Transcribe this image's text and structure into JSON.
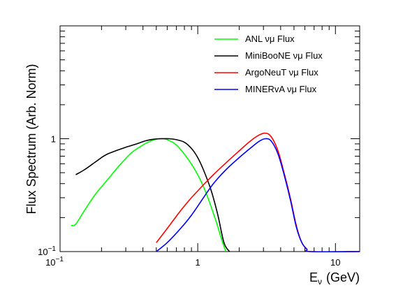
{
  "chart_data": {
    "type": "line",
    "xscale": "log",
    "yscale": "log",
    "xlim": [
      0.1,
      15
    ],
    "ylim": [
      0.1,
      10
    ],
    "xlabel": "E",
    "xlabel_sub": "ν",
    "xlabel_unit": "(GeV)",
    "ylabel": "Flux Spectrum (Arb. Norm)",
    "x_ticks": [
      {
        "value": 0.1,
        "base": "10",
        "exp": "−1"
      },
      {
        "value": 1,
        "text": "1"
      },
      {
        "value": 10,
        "text": "10"
      }
    ],
    "y_ticks": [
      {
        "value": 0.1,
        "base": "10",
        "exp": "−1"
      },
      {
        "value": 1,
        "text": "1"
      }
    ],
    "grid": false,
    "legend_position": "top-right",
    "series": [
      {
        "name": "ANL νμ Flux",
        "legend_prefix": "ANL ",
        "color": "#00ff00",
        "x": [
          0.12,
          0.13,
          0.15,
          0.18,
          0.22,
          0.27,
          0.33,
          0.4,
          0.46,
          0.52,
          0.56,
          0.6,
          0.7,
          0.85,
          1.0,
          1.15,
          1.35,
          1.5,
          1.6
        ],
        "y": [
          0.17,
          0.175,
          0.23,
          0.32,
          0.43,
          0.58,
          0.75,
          0.88,
          0.96,
          1.0,
          1.0,
          0.98,
          0.88,
          0.66,
          0.48,
          0.33,
          0.19,
          0.125,
          0.1
        ]
      },
      {
        "name": "MiniBooNE νμ Flux",
        "legend_prefix": "MiniBooNE ",
        "color": "#000000",
        "x": [
          0.13,
          0.15,
          0.18,
          0.2,
          0.22,
          0.26,
          0.3,
          0.36,
          0.42,
          0.48,
          0.55,
          0.62,
          0.7,
          0.8,
          0.9,
          1.0,
          1.1,
          1.25,
          1.4,
          1.55,
          1.7
        ],
        "y": [
          0.48,
          0.53,
          0.62,
          0.68,
          0.73,
          0.79,
          0.84,
          0.9,
          0.96,
          0.99,
          1.0,
          1.0,
          0.98,
          0.93,
          0.82,
          0.68,
          0.53,
          0.35,
          0.21,
          0.12,
          0.1
        ]
      },
      {
        "name": "ArgoNeuT νμ Flux",
        "legend_prefix": "ArgoNeuT ",
        "color": "#ff0000",
        "x": [
          0.5,
          0.6,
          0.75,
          0.9,
          1.1,
          1.3,
          1.6,
          2.0,
          2.4,
          2.8,
          3.1,
          3.4,
          3.8,
          4.2,
          4.7,
          5.2,
          5.7,
          6.2,
          6.6,
          15
        ],
        "y": [
          0.12,
          0.16,
          0.23,
          0.3,
          0.39,
          0.48,
          0.61,
          0.78,
          0.95,
          1.08,
          1.12,
          1.05,
          0.8,
          0.52,
          0.3,
          0.17,
          0.12,
          0.105,
          0.1,
          0.1
        ]
      },
      {
        "name": "MINERvA νμ Flux",
        "legend_prefix": "MINERvA ",
        "color": "#0000ff",
        "x": [
          0.5,
          0.6,
          0.75,
          0.9,
          1.1,
          1.3,
          1.6,
          2.0,
          2.4,
          2.8,
          3.1,
          3.4,
          3.8,
          4.2,
          4.7,
          5.2,
          5.7,
          6.2,
          6.6,
          15
        ],
        "y": [
          0.1,
          0.12,
          0.16,
          0.21,
          0.3,
          0.4,
          0.53,
          0.68,
          0.82,
          0.95,
          1.0,
          0.96,
          0.75,
          0.5,
          0.29,
          0.165,
          0.12,
          0.105,
          0.1,
          0.1
        ]
      }
    ]
  }
}
